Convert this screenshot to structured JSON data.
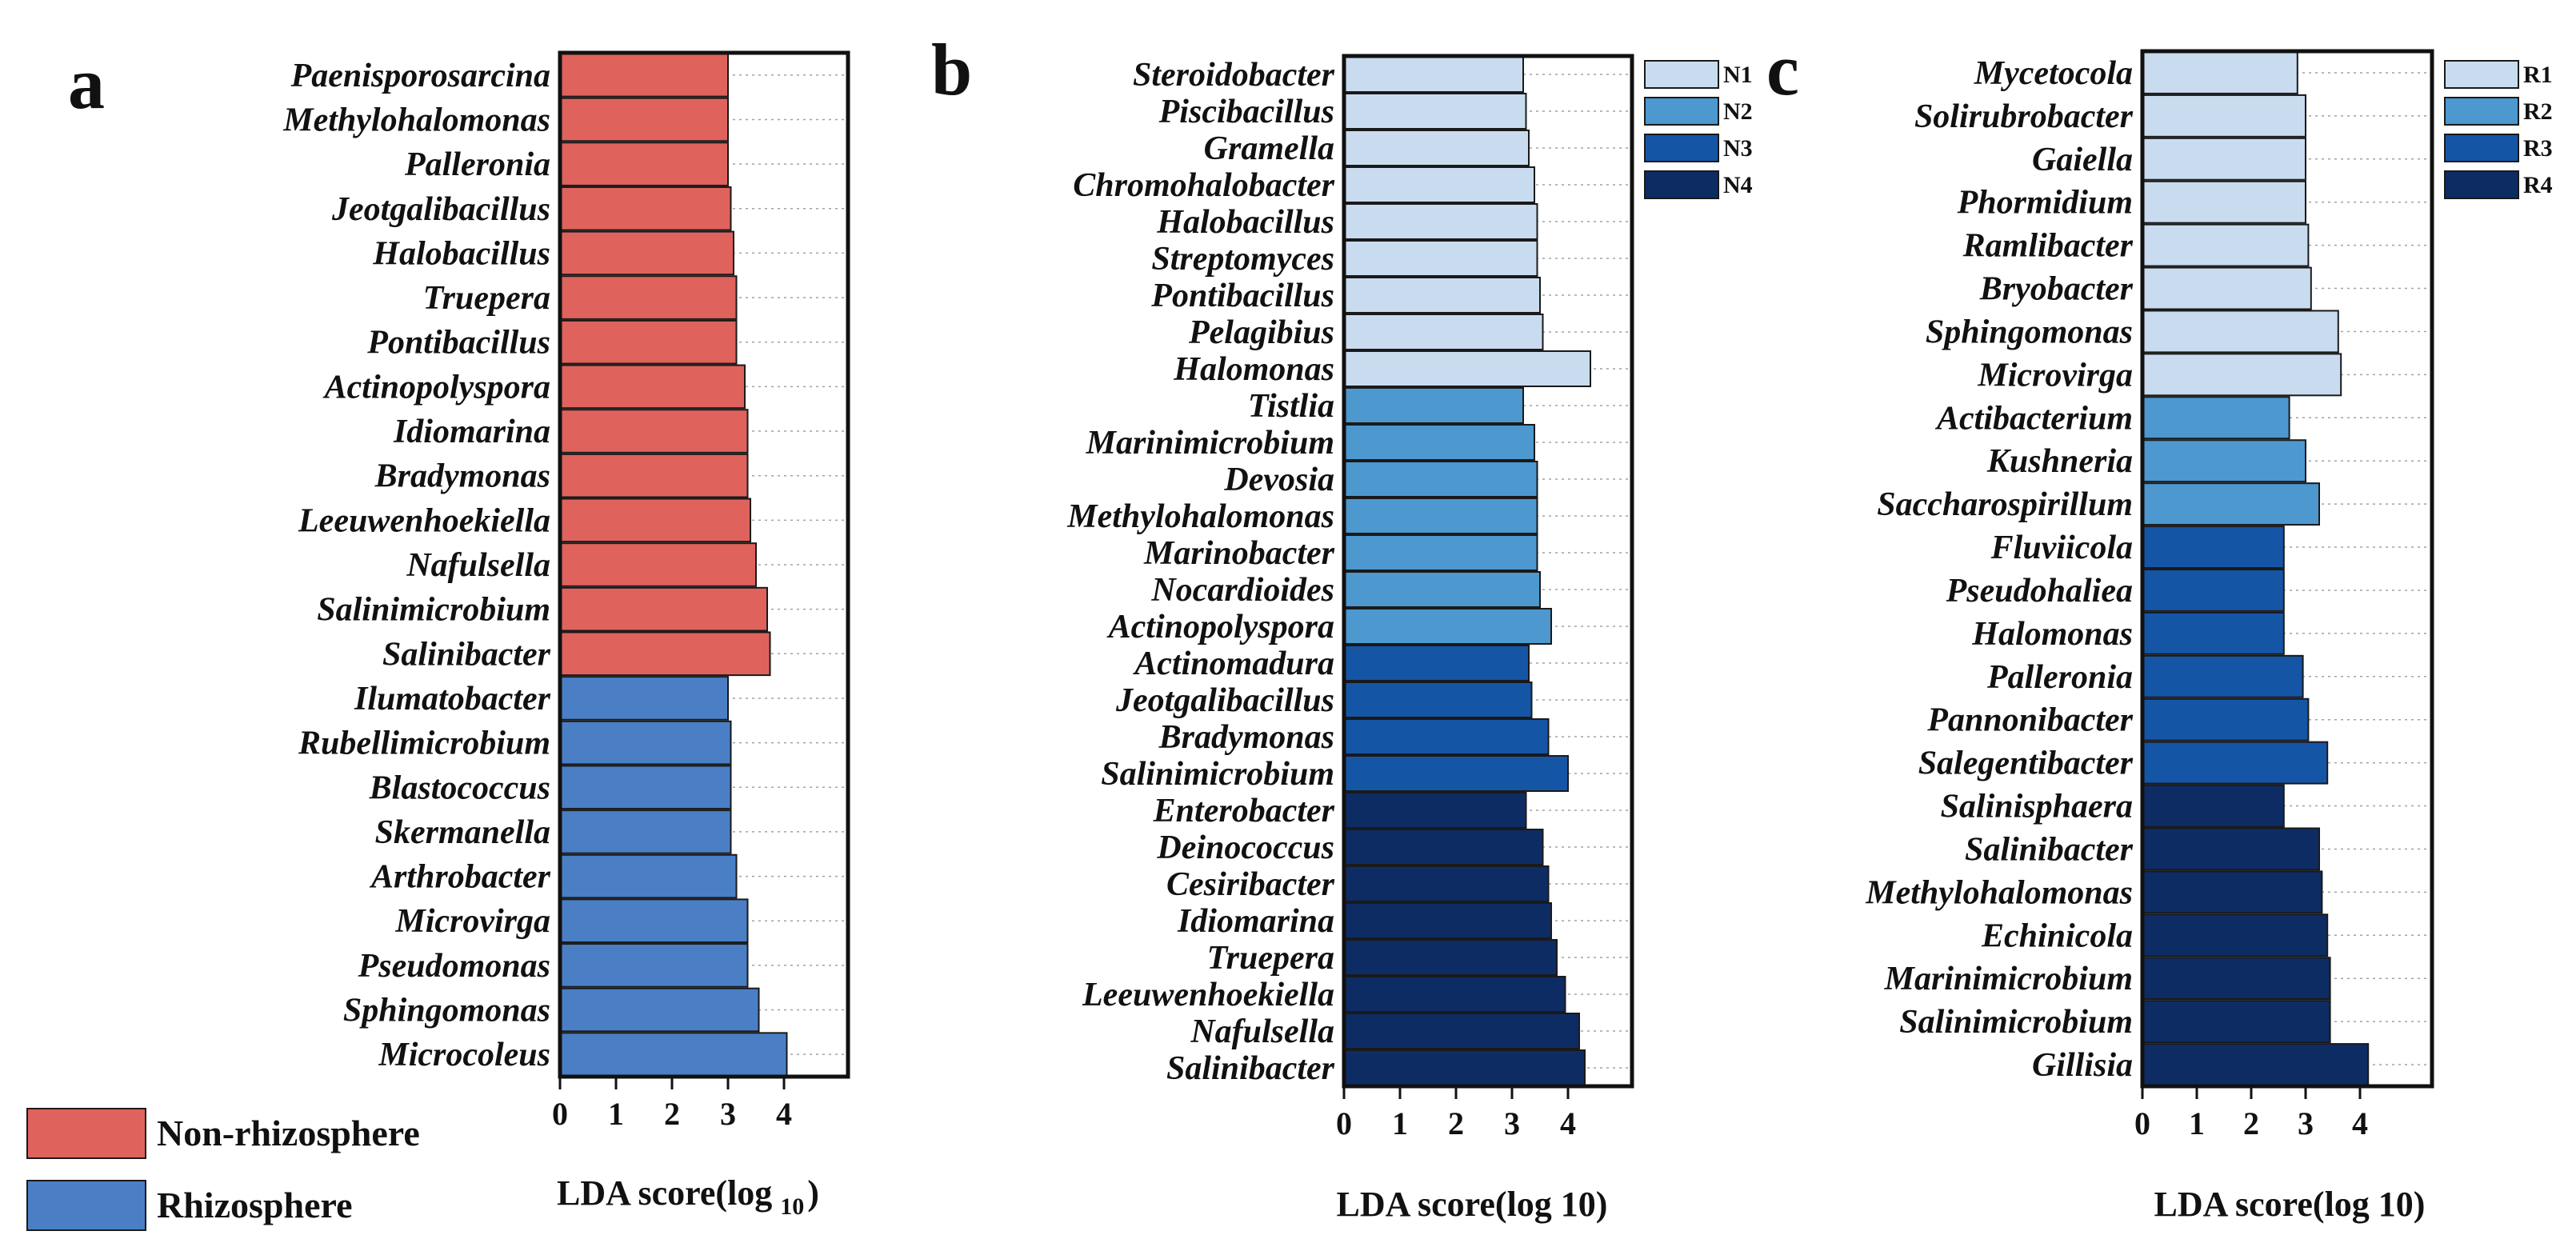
{
  "colors": {
    "non_rhizosphere": "#e0625c",
    "rhizosphere": "#4a7fc6",
    "group1": "#c9dcef",
    "group2": "#4c98cf",
    "group3": "#1555a6",
    "group4": "#0e2c64"
  },
  "chart_data": [
    {
      "panel": "a",
      "type": "bar",
      "orientation": "horizontal",
      "xlabel": "LDA score(log",
      "xlabel_sub": "10",
      "xlabel_close": ")",
      "xlim": [
        0,
        4.6
      ],
      "xticks": [
        "0",
        "1",
        "2",
        "3",
        "4"
      ],
      "grid": true,
      "legend_position": "bottom-left",
      "series": [
        {
          "name": "Non-rhizosphere",
          "color_key": "non_rhizosphere",
          "categories": [
            "Paenisporosarcina",
            "Methylohalomonas",
            "Palleronia",
            "Jeotgalibacillus",
            "Halobacillus",
            "Truepera",
            "Pontibacillus",
            "Actinopolyspora",
            "Idiomarina",
            "Bradymonas",
            "Leeuwenhoekiella",
            "Nafulsella",
            "Salinimicrobium",
            "Salinibacter"
          ],
          "values": [
            3.0,
            3.0,
            3.0,
            3.05,
            3.1,
            3.15,
            3.15,
            3.3,
            3.35,
            3.35,
            3.4,
            3.5,
            3.7,
            3.75
          ]
        },
        {
          "name": "Rhizosphere",
          "color_key": "rhizosphere",
          "categories": [
            "Ilumatobacter",
            "Rubellimicrobium",
            "Blastococcus",
            "Skermanella",
            "Arthrobacter",
            "Microvirga",
            "Pseudomonas",
            "Sphingomonas",
            "Microcoleus"
          ],
          "values": [
            3.0,
            3.05,
            3.05,
            3.05,
            3.15,
            3.35,
            3.35,
            3.55,
            4.05
          ]
        }
      ]
    },
    {
      "panel": "b",
      "type": "bar",
      "orientation": "horizontal",
      "xlabel": "LDA score(log 10)",
      "xlim": [
        0,
        4.8
      ],
      "xticks": [
        "0",
        "1",
        "2",
        "3",
        "4"
      ],
      "grid": true,
      "legend_position": "top-right",
      "series": [
        {
          "name": "N1",
          "color_key": "group1",
          "categories": [
            "Steroidobacter",
            "Piscibacillus",
            "Gramella",
            "Chromohalobacter",
            "Halobacillus",
            "Streptomyces",
            "Pontibacillus",
            "Pelagibius",
            "Halomonas"
          ],
          "values": [
            3.2,
            3.25,
            3.3,
            3.4,
            3.45,
            3.45,
            3.5,
            3.55,
            4.4
          ]
        },
        {
          "name": "N2",
          "color_key": "group2",
          "categories": [
            "Tistlia",
            "Marinimicrobium",
            "Devosia",
            "Methylohalomonas",
            "Marinobacter",
            "Nocardioides",
            "Actinopolyspora"
          ],
          "values": [
            3.2,
            3.4,
            3.45,
            3.45,
            3.45,
            3.5,
            3.7
          ]
        },
        {
          "name": "N3",
          "color_key": "group3",
          "categories": [
            "Actinomadura",
            "Jeotgalibacillus",
            "Bradymonas",
            "Salinimicrobium"
          ],
          "values": [
            3.3,
            3.35,
            3.65,
            4.0
          ]
        },
        {
          "name": "N4",
          "color_key": "group4",
          "categories": [
            "Enterobacter",
            "Deinococcus",
            "Cesiribacter",
            "Idiomarina",
            "Truepera",
            "Leeuwenhoekiella",
            "Nafulsella",
            "Salinibacter"
          ],
          "values": [
            3.25,
            3.55,
            3.65,
            3.7,
            3.8,
            3.95,
            4.2,
            4.3
          ]
        }
      ]
    },
    {
      "panel": "c",
      "type": "bar",
      "orientation": "horizontal",
      "xlabel": "LDA score(log 10)",
      "xlim": [
        0,
        4.6
      ],
      "xticks": [
        "0",
        "1",
        "2",
        "3",
        "4"
      ],
      "grid": true,
      "legend_position": "top-right",
      "series": [
        {
          "name": "R1",
          "color_key": "group1",
          "categories": [
            "Mycetocola",
            "Solirubrobacter",
            "Gaiella",
            "Phormidium",
            "Ramlibacter",
            "Bryobacter",
            "Sphingomonas",
            "Microvirga"
          ],
          "values": [
            2.85,
            3.0,
            3.0,
            3.0,
            3.05,
            3.1,
            3.6,
            3.65
          ]
        },
        {
          "name": "R2",
          "color_key": "group2",
          "categories": [
            "Actibacterium",
            "Kushneria",
            "Saccharospirillum"
          ],
          "values": [
            2.7,
            3.0,
            3.25
          ]
        },
        {
          "name": "R3",
          "color_key": "group3",
          "categories": [
            "Fluviicola",
            "Pseudohaliea",
            "Halomonas",
            "Palleronia",
            "Pannonibacter",
            "Salegentibacter"
          ],
          "values": [
            2.6,
            2.6,
            2.6,
            2.95,
            3.05,
            3.4
          ]
        },
        {
          "name": "R4",
          "color_key": "group4",
          "categories": [
            "Salinisphaera",
            "Salinibacter",
            "Methylohalomonas",
            "Echinicola",
            "Marinimicrobium",
            "Salinimicrobium",
            "Gillisia"
          ],
          "values": [
            2.6,
            3.25,
            3.3,
            3.4,
            3.45,
            3.45,
            4.15
          ]
        }
      ]
    }
  ]
}
